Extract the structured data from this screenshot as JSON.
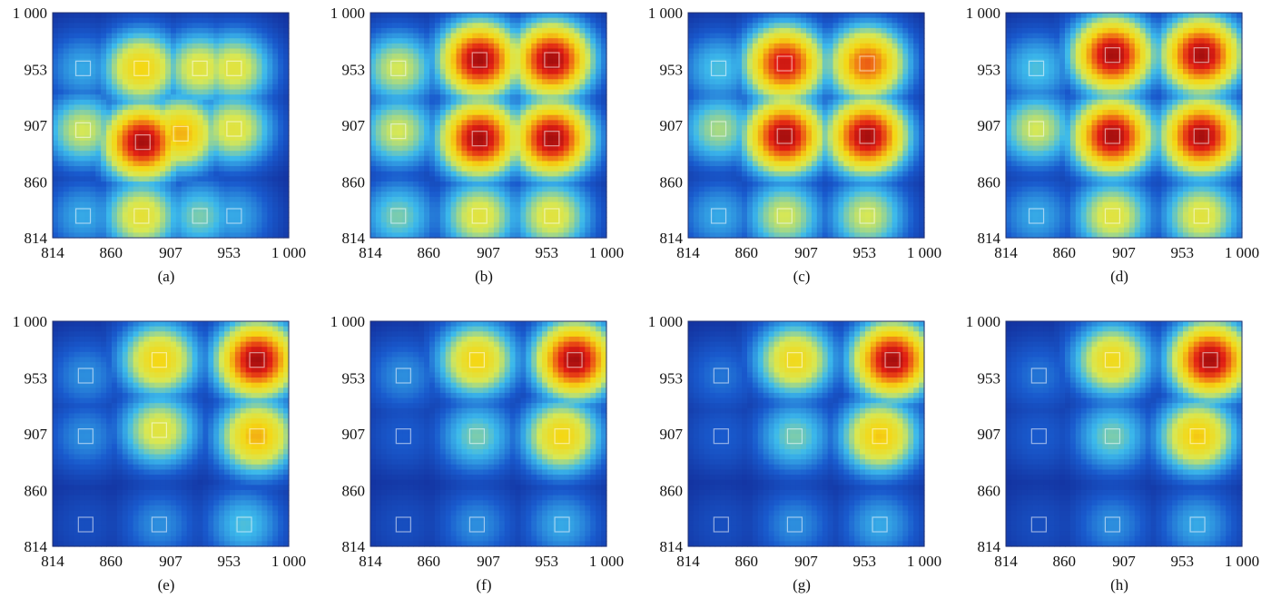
{
  "chart_data": [
    {
      "type": "heatmap",
      "caption": "(a)",
      "x_ticks": [
        "814",
        "860",
        "907",
        "953",
        "1 000"
      ],
      "y_ticks": [
        "1 000",
        "953",
        "907",
        "860",
        "814"
      ],
      "xlim": [
        814,
        1000
      ],
      "ylim": [
        814,
        1000
      ],
      "peaks": [
        {
          "x": 838,
          "y": 954,
          "v": 0.35
        },
        {
          "x": 884,
          "y": 954,
          "v": 0.7
        },
        {
          "x": 930,
          "y": 954,
          "v": 0.6
        },
        {
          "x": 957,
          "y": 954,
          "v": 0.6
        },
        {
          "x": 838,
          "y": 903,
          "v": 0.55
        },
        {
          "x": 885,
          "y": 893,
          "v": 1.0
        },
        {
          "x": 915,
          "y": 900,
          "v": 0.75
        },
        {
          "x": 957,
          "y": 904,
          "v": 0.6
        },
        {
          "x": 838,
          "y": 832,
          "v": 0.35
        },
        {
          "x": 884,
          "y": 832,
          "v": 0.62
        },
        {
          "x": 930,
          "y": 832,
          "v": 0.45
        },
        {
          "x": 957,
          "y": 832,
          "v": 0.35
        }
      ]
    },
    {
      "type": "heatmap",
      "caption": "(b)",
      "x_ticks": [
        "814",
        "860",
        "907",
        "953",
        "1 000"
      ],
      "y_ticks": [
        "1 000",
        "953",
        "907",
        "860",
        "814"
      ],
      "xlim": [
        814,
        1000
      ],
      "ylim": [
        814,
        1000
      ],
      "peaks": [
        {
          "x": 836,
          "y": 954,
          "v": 0.55
        },
        {
          "x": 900,
          "y": 961,
          "v": 1.0
        },
        {
          "x": 957,
          "y": 961,
          "v": 1.0
        },
        {
          "x": 836,
          "y": 902,
          "v": 0.55
        },
        {
          "x": 900,
          "y": 896,
          "v": 1.0
        },
        {
          "x": 957,
          "y": 896,
          "v": 1.0
        },
        {
          "x": 836,
          "y": 832,
          "v": 0.45
        },
        {
          "x": 900,
          "y": 832,
          "v": 0.6
        },
        {
          "x": 957,
          "y": 832,
          "v": 0.6
        }
      ]
    },
    {
      "type": "heatmap",
      "caption": "(c)",
      "x_ticks": [
        "814",
        "860",
        "907",
        "953",
        "1 000"
      ],
      "y_ticks": [
        "1 000",
        "953",
        "907",
        "860",
        "814"
      ],
      "xlim": [
        814,
        1000
      ],
      "ylim": [
        814,
        1000
      ],
      "peaks": [
        {
          "x": 838,
          "y": 954,
          "v": 0.4
        },
        {
          "x": 890,
          "y": 958,
          "v": 0.95
        },
        {
          "x": 955,
          "y": 958,
          "v": 0.85
        },
        {
          "x": 838,
          "y": 904,
          "v": 0.5
        },
        {
          "x": 890,
          "y": 898,
          "v": 1.0
        },
        {
          "x": 955,
          "y": 898,
          "v": 1.0
        },
        {
          "x": 838,
          "y": 832,
          "v": 0.35
        },
        {
          "x": 890,
          "y": 832,
          "v": 0.55
        },
        {
          "x": 955,
          "y": 832,
          "v": 0.55
        }
      ]
    },
    {
      "type": "heatmap",
      "caption": "(d)",
      "x_ticks": [
        "814",
        "860",
        "907",
        "953",
        "1 000"
      ],
      "y_ticks": [
        "1 000",
        "953",
        "907",
        "860",
        "814"
      ],
      "xlim": [
        814,
        1000
      ],
      "ylim": [
        814,
        1000
      ],
      "peaks": [
        {
          "x": 838,
          "y": 954,
          "v": 0.4
        },
        {
          "x": 898,
          "y": 965,
          "v": 1.0
        },
        {
          "x": 968,
          "y": 965,
          "v": 1.0
        },
        {
          "x": 838,
          "y": 904,
          "v": 0.55
        },
        {
          "x": 898,
          "y": 898,
          "v": 1.0
        },
        {
          "x": 968,
          "y": 898,
          "v": 1.0
        },
        {
          "x": 838,
          "y": 832,
          "v": 0.35
        },
        {
          "x": 898,
          "y": 832,
          "v": 0.6
        },
        {
          "x": 968,
          "y": 832,
          "v": 0.6
        }
      ]
    },
    {
      "type": "heatmap",
      "caption": "(e)",
      "x_ticks": [
        "814",
        "860",
        "907",
        "953",
        "1 000"
      ],
      "y_ticks": [
        "1 000",
        "953",
        "907",
        "860",
        "814"
      ],
      "xlim": [
        814,
        1000
      ],
      "ylim": [
        814,
        1000
      ],
      "peaks": [
        {
          "x": 840,
          "y": 955,
          "v": 0.3
        },
        {
          "x": 898,
          "y": 968,
          "v": 0.7
        },
        {
          "x": 975,
          "y": 968,
          "v": 1.0
        },
        {
          "x": 840,
          "y": 905,
          "v": 0.3
        },
        {
          "x": 898,
          "y": 910,
          "v": 0.6
        },
        {
          "x": 975,
          "y": 905,
          "v": 0.75
        },
        {
          "x": 840,
          "y": 832,
          "v": 0.15
        },
        {
          "x": 898,
          "y": 832,
          "v": 0.3
        },
        {
          "x": 965,
          "y": 832,
          "v": 0.4
        }
      ]
    },
    {
      "type": "heatmap",
      "caption": "(f)",
      "x_ticks": [
        "814",
        "860",
        "907",
        "953",
        "1 000"
      ],
      "y_ticks": [
        "1 000",
        "953",
        "907",
        "860",
        "814"
      ],
      "xlim": [
        814,
        1000
      ],
      "ylim": [
        814,
        1000
      ],
      "peaks": [
        {
          "x": 840,
          "y": 955,
          "v": 0.3
        },
        {
          "x": 898,
          "y": 968,
          "v": 0.7
        },
        {
          "x": 975,
          "y": 968,
          "v": 1.0
        },
        {
          "x": 840,
          "y": 905,
          "v": 0.2
        },
        {
          "x": 898,
          "y": 905,
          "v": 0.45
        },
        {
          "x": 965,
          "y": 905,
          "v": 0.7
        },
        {
          "x": 840,
          "y": 832,
          "v": 0.15
        },
        {
          "x": 898,
          "y": 832,
          "v": 0.3
        },
        {
          "x": 965,
          "y": 832,
          "v": 0.35
        }
      ]
    },
    {
      "type": "heatmap",
      "caption": "(g)",
      "x_ticks": [
        "814",
        "860",
        "907",
        "953",
        "1 000"
      ],
      "y_ticks": [
        "1 000",
        "953",
        "907",
        "860",
        "814"
      ],
      "xlim": [
        814,
        1000
      ],
      "ylim": [
        814,
        1000
      ],
      "peaks": [
        {
          "x": 840,
          "y": 955,
          "v": 0.25
        },
        {
          "x": 898,
          "y": 968,
          "v": 0.68
        },
        {
          "x": 975,
          "y": 968,
          "v": 1.0
        },
        {
          "x": 840,
          "y": 905,
          "v": 0.2
        },
        {
          "x": 898,
          "y": 905,
          "v": 0.45
        },
        {
          "x": 965,
          "y": 905,
          "v": 0.72
        },
        {
          "x": 840,
          "y": 832,
          "v": 0.15
        },
        {
          "x": 898,
          "y": 832,
          "v": 0.3
        },
        {
          "x": 965,
          "y": 832,
          "v": 0.35
        }
      ]
    },
    {
      "type": "heatmap",
      "caption": "(h)",
      "x_ticks": [
        "814",
        "860",
        "907",
        "953",
        "1 000"
      ],
      "y_ticks": [
        "1 000",
        "953",
        "907",
        "860",
        "814"
      ],
      "xlim": [
        814,
        1000
      ],
      "ylim": [
        814,
        1000
      ],
      "peaks": [
        {
          "x": 840,
          "y": 955,
          "v": 0.25
        },
        {
          "x": 898,
          "y": 968,
          "v": 0.68
        },
        {
          "x": 975,
          "y": 968,
          "v": 1.0
        },
        {
          "x": 840,
          "y": 905,
          "v": 0.2
        },
        {
          "x": 898,
          "y": 905,
          "v": 0.45
        },
        {
          "x": 965,
          "y": 905,
          "v": 0.72
        },
        {
          "x": 840,
          "y": 832,
          "v": 0.15
        },
        {
          "x": 898,
          "y": 832,
          "v": 0.3
        },
        {
          "x": 965,
          "y": 832,
          "v": 0.35
        }
      ]
    }
  ]
}
